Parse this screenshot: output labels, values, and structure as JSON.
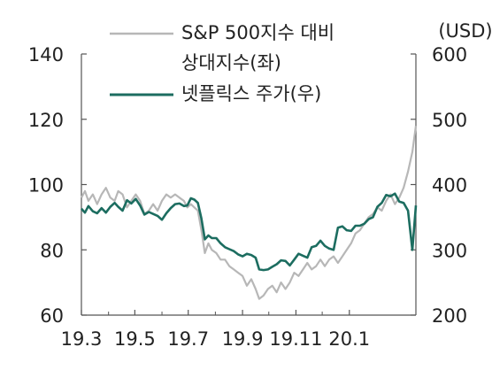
{
  "chart_data": {
    "type": "line",
    "unit_label": "(USD)",
    "x_ticks": [
      "19.3",
      "19.5",
      "19.7",
      "19.9",
      "19.11",
      "20.1"
    ],
    "left_axis": {
      "ticks": [
        60,
        80,
        100,
        120,
        140
      ],
      "range": [
        60,
        140
      ]
    },
    "right_axis": {
      "ticks": [
        200,
        300,
        400,
        500,
        600
      ],
      "range": [
        200,
        600
      ]
    },
    "legend_position": "top-center",
    "series": [
      {
        "name": "S&P 500지수 대비 상대지수(좌)",
        "name_lines": [
          "S&P 500지수 대비",
          "상대지수(좌)"
        ],
        "axis": "left",
        "color": "#b7b7b7",
        "points": [
          [
            "2019-03-01",
            96
          ],
          [
            "2019-03-05",
            98
          ],
          [
            "2019-03-09",
            95
          ],
          [
            "2019-03-14",
            97
          ],
          [
            "2019-03-19",
            94
          ],
          [
            "2019-03-24",
            97
          ],
          [
            "2019-03-29",
            99
          ],
          [
            "2019-04-03",
            96
          ],
          [
            "2019-04-08",
            95
          ],
          [
            "2019-04-12",
            98
          ],
          [
            "2019-04-17",
            97
          ],
          [
            "2019-04-22",
            93
          ],
          [
            "2019-04-27",
            95
          ],
          [
            "2019-05-02",
            97
          ],
          [
            "2019-05-07",
            95
          ],
          [
            "2019-05-12",
            91
          ],
          [
            "2019-05-17",
            92
          ],
          [
            "2019-05-22",
            94
          ],
          [
            "2019-05-27",
            92
          ],
          [
            "2019-06-01",
            95
          ],
          [
            "2019-06-06",
            97
          ],
          [
            "2019-06-11",
            96
          ],
          [
            "2019-06-16",
            97
          ],
          [
            "2019-06-21",
            96
          ],
          [
            "2019-06-26",
            95
          ],
          [
            "2019-06-30",
            93
          ],
          [
            "2019-07-04",
            94
          ],
          [
            "2019-07-08",
            93
          ],
          [
            "2019-07-12",
            92
          ],
          [
            "2019-07-16",
            86
          ],
          [
            "2019-07-20",
            79
          ],
          [
            "2019-07-24",
            82
          ],
          [
            "2019-07-28",
            80
          ],
          [
            "2019-08-02",
            79
          ],
          [
            "2019-08-07",
            77
          ],
          [
            "2019-08-12",
            77
          ],
          [
            "2019-08-17",
            75
          ],
          [
            "2019-08-22",
            74
          ],
          [
            "2019-08-27",
            73
          ],
          [
            "2019-09-01",
            72
          ],
          [
            "2019-09-06",
            69
          ],
          [
            "2019-09-11",
            71
          ],
          [
            "2019-09-16",
            68
          ],
          [
            "2019-09-20",
            65
          ],
          [
            "2019-09-25",
            66
          ],
          [
            "2019-09-30",
            68
          ],
          [
            "2019-10-05",
            69
          ],
          [
            "2019-10-10",
            67
          ],
          [
            "2019-10-15",
            70
          ],
          [
            "2019-10-20",
            68
          ],
          [
            "2019-10-25",
            70
          ],
          [
            "2019-10-30",
            73
          ],
          [
            "2019-11-04",
            72
          ],
          [
            "2019-11-09",
            74
          ],
          [
            "2019-11-14",
            76
          ],
          [
            "2019-11-19",
            74
          ],
          [
            "2019-11-24",
            75
          ],
          [
            "2019-11-29",
            77
          ],
          [
            "2019-12-04",
            75
          ],
          [
            "2019-12-09",
            77
          ],
          [
            "2019-12-14",
            78
          ],
          [
            "2019-12-19",
            76
          ],
          [
            "2019-12-24",
            78
          ],
          [
            "2019-12-29",
            80
          ],
          [
            "2020-01-03",
            82
          ],
          [
            "2020-01-08",
            85
          ],
          [
            "2020-01-13",
            86
          ],
          [
            "2020-01-18",
            88
          ],
          [
            "2020-01-23",
            90
          ],
          [
            "2020-01-28",
            91
          ],
          [
            "2020-02-02",
            93
          ],
          [
            "2020-02-07",
            92
          ],
          [
            "2020-02-12",
            95
          ],
          [
            "2020-02-17",
            97
          ],
          [
            "2020-02-22",
            94
          ],
          [
            "2020-02-27",
            96
          ],
          [
            "2020-03-03",
            99
          ],
          [
            "2020-03-08",
            104
          ],
          [
            "2020-03-13",
            110
          ],
          [
            "2020-03-17",
            118
          ]
        ]
      },
      {
        "name": "넷플릭스 주가(우)",
        "name_lines": [
          "넷플릭스 주가(우)"
        ],
        "axis": "right",
        "color": "#1c6d60",
        "points": [
          [
            "2019-03-01",
            363
          ],
          [
            "2019-03-05",
            357
          ],
          [
            "2019-03-09",
            367
          ],
          [
            "2019-03-14",
            359
          ],
          [
            "2019-03-19",
            356
          ],
          [
            "2019-03-24",
            364
          ],
          [
            "2019-03-29",
            357
          ],
          [
            "2019-04-03",
            366
          ],
          [
            "2019-04-08",
            372
          ],
          [
            "2019-04-12",
            366
          ],
          [
            "2019-04-17",
            360
          ],
          [
            "2019-04-22",
            376
          ],
          [
            "2019-04-27",
            371
          ],
          [
            "2019-05-02",
            378
          ],
          [
            "2019-05-07",
            368
          ],
          [
            "2019-05-12",
            354
          ],
          [
            "2019-05-17",
            358
          ],
          [
            "2019-05-22",
            355
          ],
          [
            "2019-05-27",
            352
          ],
          [
            "2019-06-01",
            346
          ],
          [
            "2019-06-06",
            356
          ],
          [
            "2019-06-11",
            364
          ],
          [
            "2019-06-16",
            370
          ],
          [
            "2019-06-21",
            371
          ],
          [
            "2019-06-26",
            367
          ],
          [
            "2019-06-30",
            368
          ],
          [
            "2019-07-04",
            379
          ],
          [
            "2019-07-08",
            377
          ],
          [
            "2019-07-12",
            372
          ],
          [
            "2019-07-16",
            348
          ],
          [
            "2019-07-20",
            316
          ],
          [
            "2019-07-24",
            322
          ],
          [
            "2019-07-28",
            318
          ],
          [
            "2019-08-02",
            318
          ],
          [
            "2019-08-07",
            310
          ],
          [
            "2019-08-12",
            304
          ],
          [
            "2019-08-17",
            301
          ],
          [
            "2019-08-22",
            298
          ],
          [
            "2019-08-27",
            293
          ],
          [
            "2019-09-01",
            290
          ],
          [
            "2019-09-06",
            294
          ],
          [
            "2019-09-11",
            292
          ],
          [
            "2019-09-16",
            288
          ],
          [
            "2019-09-20",
            270
          ],
          [
            "2019-09-25",
            269
          ],
          [
            "2019-09-30",
            270
          ],
          [
            "2019-10-05",
            274
          ],
          [
            "2019-10-10",
            278
          ],
          [
            "2019-10-15",
            284
          ],
          [
            "2019-10-20",
            283
          ],
          [
            "2019-10-25",
            276
          ],
          [
            "2019-10-30",
            285
          ],
          [
            "2019-11-04",
            294
          ],
          [
            "2019-11-09",
            291
          ],
          [
            "2019-11-14",
            288
          ],
          [
            "2019-11-19",
            304
          ],
          [
            "2019-11-24",
            306
          ],
          [
            "2019-11-29",
            314
          ],
          [
            "2019-12-04",
            306
          ],
          [
            "2019-12-09",
            302
          ],
          [
            "2019-12-14",
            300
          ],
          [
            "2019-12-19",
            334
          ],
          [
            "2019-12-24",
            336
          ],
          [
            "2019-12-29",
            330
          ],
          [
            "2020-01-03",
            329
          ],
          [
            "2020-01-08",
            337
          ],
          [
            "2020-01-13",
            337
          ],
          [
            "2020-01-18",
            340
          ],
          [
            "2020-01-23",
            347
          ],
          [
            "2020-01-28",
            350
          ],
          [
            "2020-02-02",
            366
          ],
          [
            "2020-02-07",
            372
          ],
          [
            "2020-02-12",
            384
          ],
          [
            "2020-02-17",
            382
          ],
          [
            "2020-02-22",
            386
          ],
          [
            "2020-02-27",
            374
          ],
          [
            "2020-03-03",
            372
          ],
          [
            "2020-03-08",
            360
          ],
          [
            "2020-03-13",
            300
          ],
          [
            "2020-03-17",
            368
          ]
        ]
      }
    ]
  }
}
